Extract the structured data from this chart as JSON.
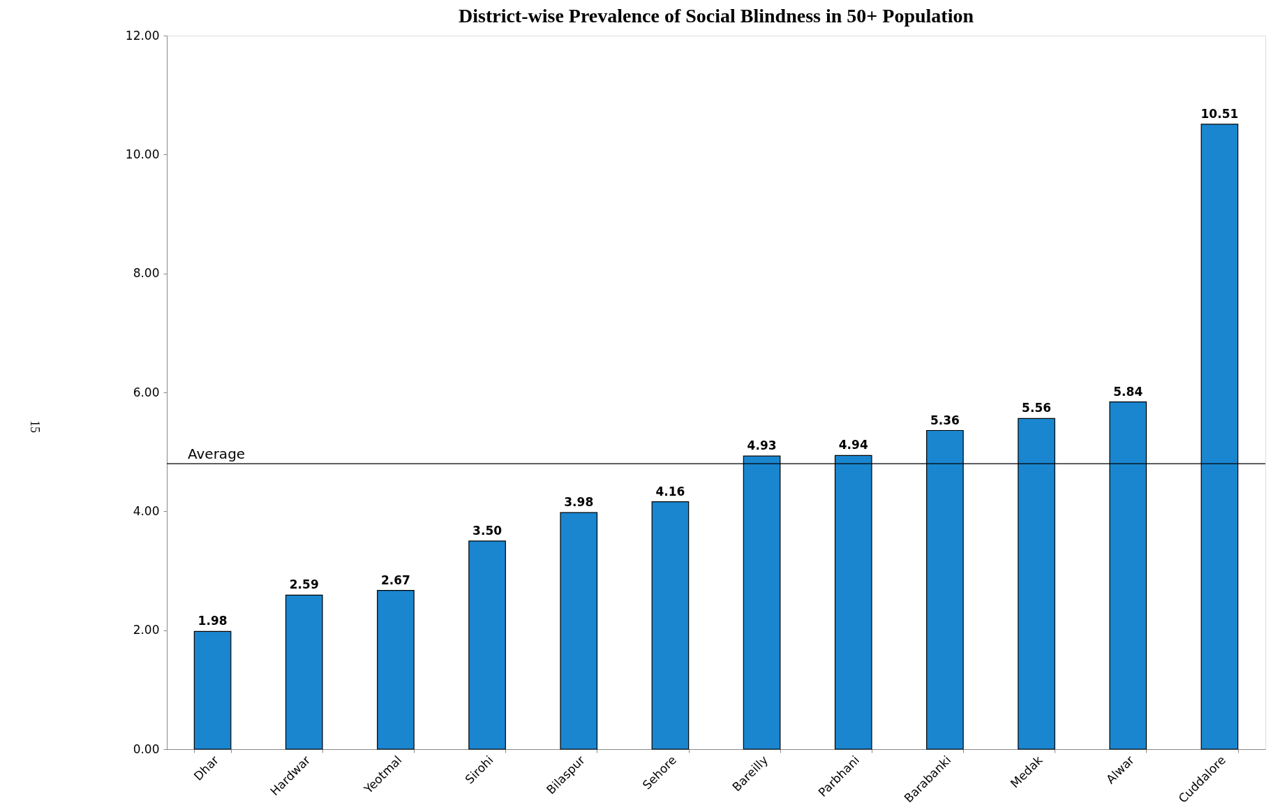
{
  "chart_data": {
    "type": "bar",
    "title": "District-wise Prevalence of Social Blindness in 50+ Population",
    "categories": [
      "Dhar",
      "Hardwar",
      "Yeotmal",
      "Sirohi",
      "Bilaspur",
      "Sehore",
      "Bareilly",
      "Parbhani",
      "Barabanki",
      "Medak",
      "Alwar",
      "Cuddalore"
    ],
    "values": [
      1.98,
      2.59,
      2.67,
      3.5,
      3.98,
      4.16,
      4.93,
      4.94,
      5.36,
      5.56,
      5.84,
      10.51
    ],
    "value_labels": [
      "1.98",
      "2.59",
      "2.67",
      "3.50",
      "3.98",
      "4.16",
      "4.93",
      "4.94",
      "5.36",
      "5.56",
      "5.84",
      "10.51"
    ],
    "color": "#1a86d0",
    "ylim": [
      0,
      12
    ],
    "yticks": [
      {
        "value": 0,
        "label": "0.00"
      },
      {
        "value": 2,
        "label": "2.00"
      },
      {
        "value": 4,
        "label": "4.00"
      },
      {
        "value": 6,
        "label": "6.00"
      },
      {
        "value": 8,
        "label": "8.00"
      },
      {
        "value": 10,
        "label": "10.00"
      },
      {
        "value": 12,
        "label": "12.00"
      }
    ],
    "ref_lines": [
      {
        "axis": "y",
        "value": 4.8,
        "label": "Average",
        "color": "#000000"
      }
    ],
    "annotations": [
      "15"
    ],
    "grid": false
  }
}
